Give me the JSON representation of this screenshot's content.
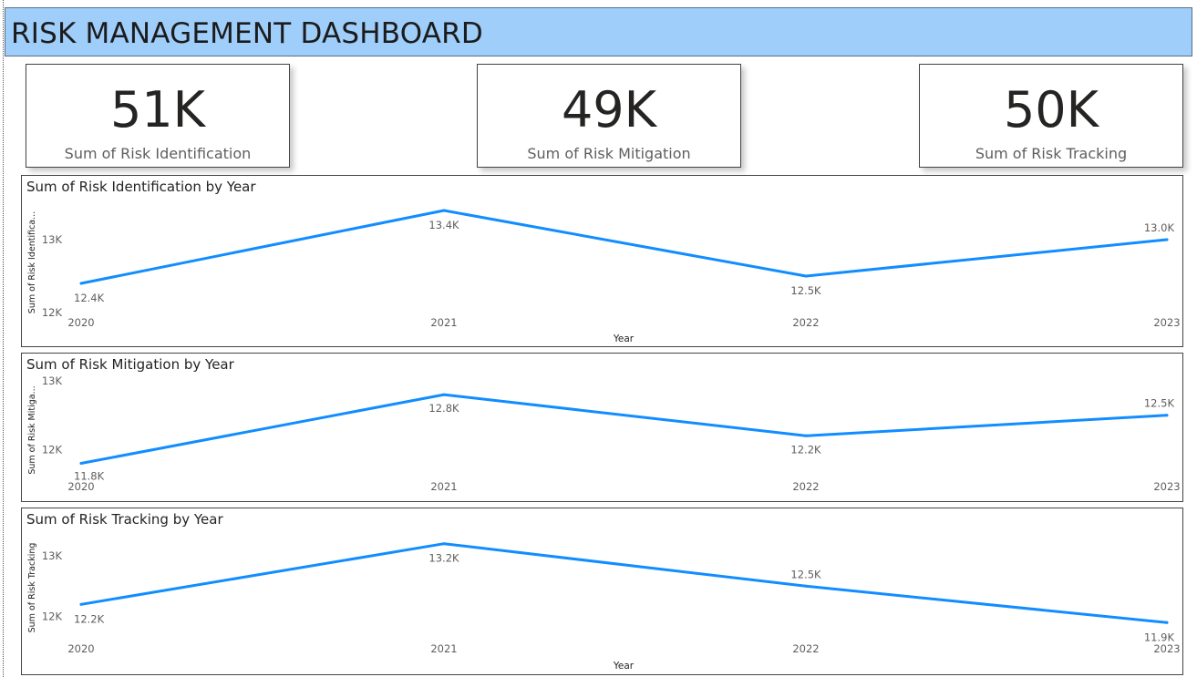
{
  "header": {
    "title": "RISK MANAGEMENT DASHBOARD"
  },
  "cards": [
    {
      "value": "51K",
      "label": "Sum of Risk Identification"
    },
    {
      "value": "49K",
      "label": "Sum of Risk Mitigation"
    },
    {
      "value": "50K",
      "label": "Sum of Risk Tracking"
    }
  ],
  "colors": {
    "line": "#118dff",
    "header_bg": "#9fcefb"
  },
  "chart_data": [
    {
      "type": "line",
      "title": "Sum of Risk Identification by Year",
      "xlabel": "Year",
      "ylabel": "Sum of Risk Identifica...",
      "categories": [
        "2020",
        "2021",
        "2022",
        "2023"
      ],
      "values": [
        12400,
        13400,
        12500,
        13000
      ],
      "data_labels": [
        "12.4K",
        "13.4K",
        "12.5K",
        "13.0K"
      ],
      "yticks": [
        {
          "value": 12000,
          "label": "12K"
        },
        {
          "value": 13000,
          "label": "13K"
        }
      ],
      "ylim": [
        12000,
        13500
      ]
    },
    {
      "type": "line",
      "title": "Sum of Risk Mitigation by Year",
      "xlabel": "",
      "ylabel": "Sum of Risk Mitiga...",
      "categories": [
        "2020",
        "2021",
        "2022",
        "2023"
      ],
      "values": [
        11800,
        12800,
        12200,
        12500
      ],
      "data_labels": [
        "11.8K",
        "12.8K",
        "12.2K",
        "12.5K"
      ],
      "yticks": [
        {
          "value": 12000,
          "label": "12K"
        },
        {
          "value": 13000,
          "label": "13K"
        }
      ],
      "ylim": [
        11700,
        13000
      ]
    },
    {
      "type": "line",
      "title": "Sum of Risk Tracking by Year",
      "xlabel": "Year",
      "ylabel": "Sum of Risk Tracking",
      "categories": [
        "2020",
        "2021",
        "2022",
        "2023"
      ],
      "values": [
        12200,
        13200,
        12500,
        11900
      ],
      "data_labels": [
        "12.2K",
        "13.2K",
        "12.5K",
        "11.9K"
      ],
      "yticks": [
        {
          "value": 12000,
          "label": "12K"
        },
        {
          "value": 13000,
          "label": "13K"
        }
      ],
      "ylim": [
        11800,
        13300
      ]
    }
  ]
}
